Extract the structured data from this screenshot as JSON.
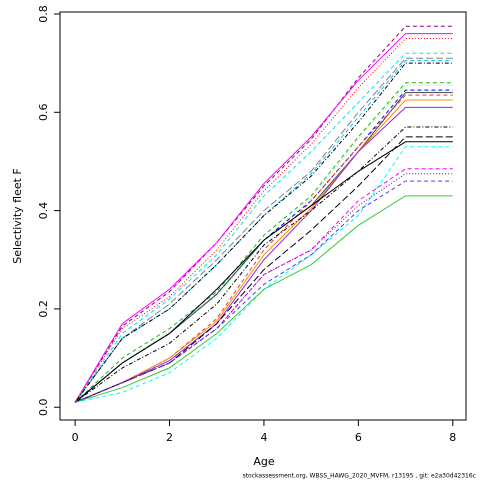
{
  "chart_data": {
    "type": "line",
    "xlabel": "Age",
    "ylabel": "Selectivity fleet F",
    "footer": "stockassessment.org, WBSS_HAWG_2020_MVFM, r13195 , git: e2a30d42316c",
    "x": [
      0,
      1,
      2,
      3,
      4,
      5,
      6,
      7,
      8
    ],
    "xlim": [
      -0.32,
      8.28
    ],
    "xticks": [
      0,
      2,
      4,
      6,
      8
    ],
    "ylim": [
      -0.026,
      0.804
    ],
    "yticks": [
      {
        "value": 0,
        "label": "0.0"
      },
      0.2,
      0.4,
      0.6,
      0.8
    ],
    "series": [
      {
        "color": "#8B008B",
        "dash": "dashed",
        "values": [
          0.01,
          0.165,
          0.235,
          0.335,
          0.45,
          0.545,
          0.67,
          0.775,
          0.775
        ]
      },
      {
        "color": "#FF00FF",
        "dash": "solid",
        "values": [
          0.01,
          0.17,
          0.24,
          0.335,
          0.455,
          0.55,
          0.665,
          0.76,
          0.76
        ]
      },
      {
        "color": "#FF0000",
        "dash": "dotted",
        "values": [
          0.01,
          0.16,
          0.225,
          0.32,
          0.44,
          0.535,
          0.65,
          0.75,
          0.75
        ]
      },
      {
        "color": "#00E5EE",
        "dash": "dashed",
        "values": [
          0.01,
          0.15,
          0.22,
          0.31,
          0.43,
          0.52,
          0.62,
          0.72,
          0.72
        ]
      },
      {
        "color": "#808080",
        "dash": "longdash",
        "values": [
          0.01,
          0.14,
          0.21,
          0.3,
          0.4,
          0.48,
          0.6,
          0.71,
          0.71
        ]
      },
      {
        "color": "#00BFFF",
        "dash": "dashed",
        "values": [
          0.01,
          0.14,
          0.2,
          0.29,
          0.39,
          0.475,
          0.59,
          0.705,
          0.705
        ]
      },
      {
        "color": "#000000",
        "dash": "dotdash",
        "values": [
          0.01,
          0.14,
          0.2,
          0.29,
          0.39,
          0.47,
          0.58,
          0.7,
          0.7
        ]
      },
      {
        "color": "#22B022",
        "dash": "dashed",
        "values": [
          0.01,
          0.1,
          0.16,
          0.235,
          0.35,
          0.43,
          0.55,
          0.66,
          0.66
        ]
      },
      {
        "color": "#90EE90",
        "dash": "dotted",
        "values": [
          0.01,
          0.09,
          0.155,
          0.225,
          0.34,
          0.425,
          0.545,
          0.655,
          0.655
        ]
      },
      {
        "color": "#0000FF",
        "dash": "dashed",
        "values": [
          0.01,
          0.09,
          0.15,
          0.23,
          0.34,
          0.42,
          0.53,
          0.645,
          0.645
        ]
      },
      {
        "color": "#2F4F4F",
        "dash": "solid",
        "values": [
          0.01,
          0.09,
          0.15,
          0.23,
          0.34,
          0.41,
          0.52,
          0.64,
          0.64
        ]
      },
      {
        "color": "#FF3030",
        "dash": "dashed",
        "values": [
          0.01,
          0.05,
          0.1,
          0.18,
          0.32,
          0.42,
          0.53,
          0.635,
          0.635
        ]
      },
      {
        "color": "#FF8C00",
        "dash": "solid",
        "values": [
          0.01,
          0.05,
          0.1,
          0.175,
          0.31,
          0.405,
          0.52,
          0.625,
          0.625
        ]
      },
      {
        "color": "#8A2BE2",
        "dash": "solid",
        "values": [
          0.01,
          0.05,
          0.095,
          0.17,
          0.3,
          0.4,
          0.52,
          0.61,
          0.61
        ]
      },
      {
        "color": "#000000",
        "dash": "solid",
        "values": [
          0.01,
          0.09,
          0.15,
          0.24,
          0.34,
          0.41,
          0.48,
          0.54,
          0.54
        ]
      },
      {
        "color": "#000000",
        "dash": "dotdash",
        "values": [
          0.01,
          0.08,
          0.13,
          0.21,
          0.33,
          0.4,
          0.48,
          0.57,
          0.57
        ]
      },
      {
        "color": "#000000",
        "dash": "longdash",
        "values": [
          0.01,
          0.05,
          0.09,
          0.17,
          0.28,
          0.36,
          0.45,
          0.55,
          0.55
        ]
      },
      {
        "color": "#00FFFF",
        "dash": "dashed",
        "values": [
          0.01,
          0.03,
          0.07,
          0.14,
          0.24,
          0.31,
          0.39,
          0.53,
          0.53
        ]
      },
      {
        "color": "#FF00FF",
        "dash": "dashed",
        "values": [
          0.01,
          0.05,
          0.09,
          0.16,
          0.27,
          0.32,
          0.42,
          0.485,
          0.485
        ]
      },
      {
        "color": "#4040FF",
        "dash": "dashed",
        "values": [
          0.01,
          0.05,
          0.09,
          0.16,
          0.25,
          0.31,
          0.4,
          0.46,
          0.46
        ]
      },
      {
        "color": "#32CD32",
        "dash": "solid",
        "values": [
          0.01,
          0.04,
          0.08,
          0.15,
          0.24,
          0.29,
          0.37,
          0.43,
          0.43
        ]
      },
      {
        "color": "#800080",
        "dash": "dotted",
        "values": [
          0.01,
          0.05,
          0.09,
          0.16,
          0.27,
          0.32,
          0.41,
          0.475,
          0.475
        ]
      }
    ]
  }
}
